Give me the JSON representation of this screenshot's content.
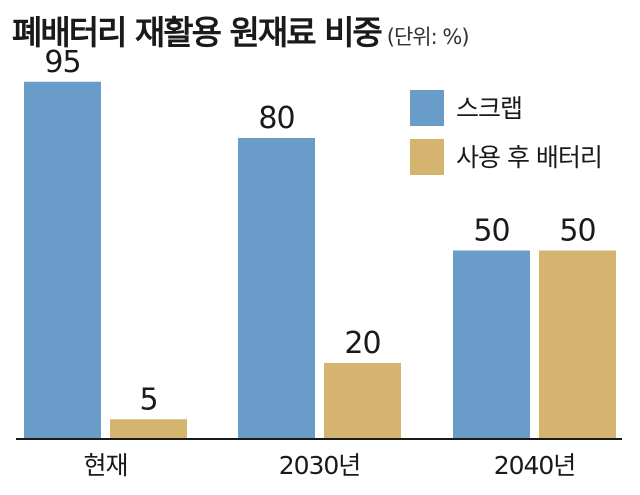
{
  "chart_data": {
    "type": "bar",
    "title": "폐배터리 재활용 원재료 비중",
    "unit": "(단위: %)",
    "categories": [
      "현재",
      "2030년",
      "2040년"
    ],
    "series": [
      {
        "name": "스크랩",
        "values": [
          95,
          80,
          50
        ],
        "color": "#6a9cc9"
      },
      {
        "name": "사용 후 배터리",
        "values": [
          5,
          20,
          50
        ],
        "color": "#d5b46f"
      }
    ],
    "ylim": [
      0,
      100
    ],
    "grid": false,
    "legend": "top-right",
    "axis_color": "#1a1a1a"
  }
}
